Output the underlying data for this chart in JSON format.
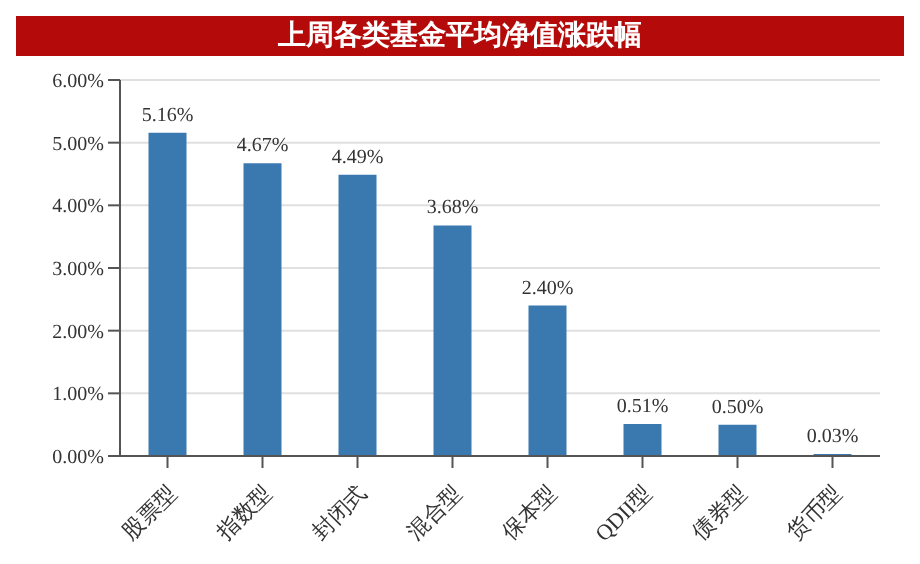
{
  "chart_data": {
    "type": "bar",
    "title": "上周各类基金平均净值涨跌幅",
    "categories": [
      "股票型",
      "指数型",
      "封闭式",
      "混合型",
      "保本型",
      "QDII型",
      "债券型",
      "货币型"
    ],
    "values": [
      5.16,
      4.67,
      4.49,
      3.68,
      2.4,
      0.51,
      0.5,
      0.03
    ],
    "value_labels": [
      "5.16%",
      "4.67%",
      "4.49%",
      "3.68%",
      "2.40%",
      "0.51%",
      "0.50%",
      "0.03%"
    ],
    "color": "#3a78b0",
    "ylim": [
      0,
      6
    ],
    "yticks": [
      {
        "value": 0,
        "label": "0.00%"
      },
      {
        "value": 1,
        "label": "1.00%"
      },
      {
        "value": 2,
        "label": "2.00%"
      },
      {
        "value": 3,
        "label": "3.00%"
      },
      {
        "value": 4,
        "label": "4.00%"
      },
      {
        "value": 5,
        "label": "5.00%"
      },
      {
        "value": 6,
        "label": "6.00%"
      }
    ],
    "grid": "y"
  }
}
